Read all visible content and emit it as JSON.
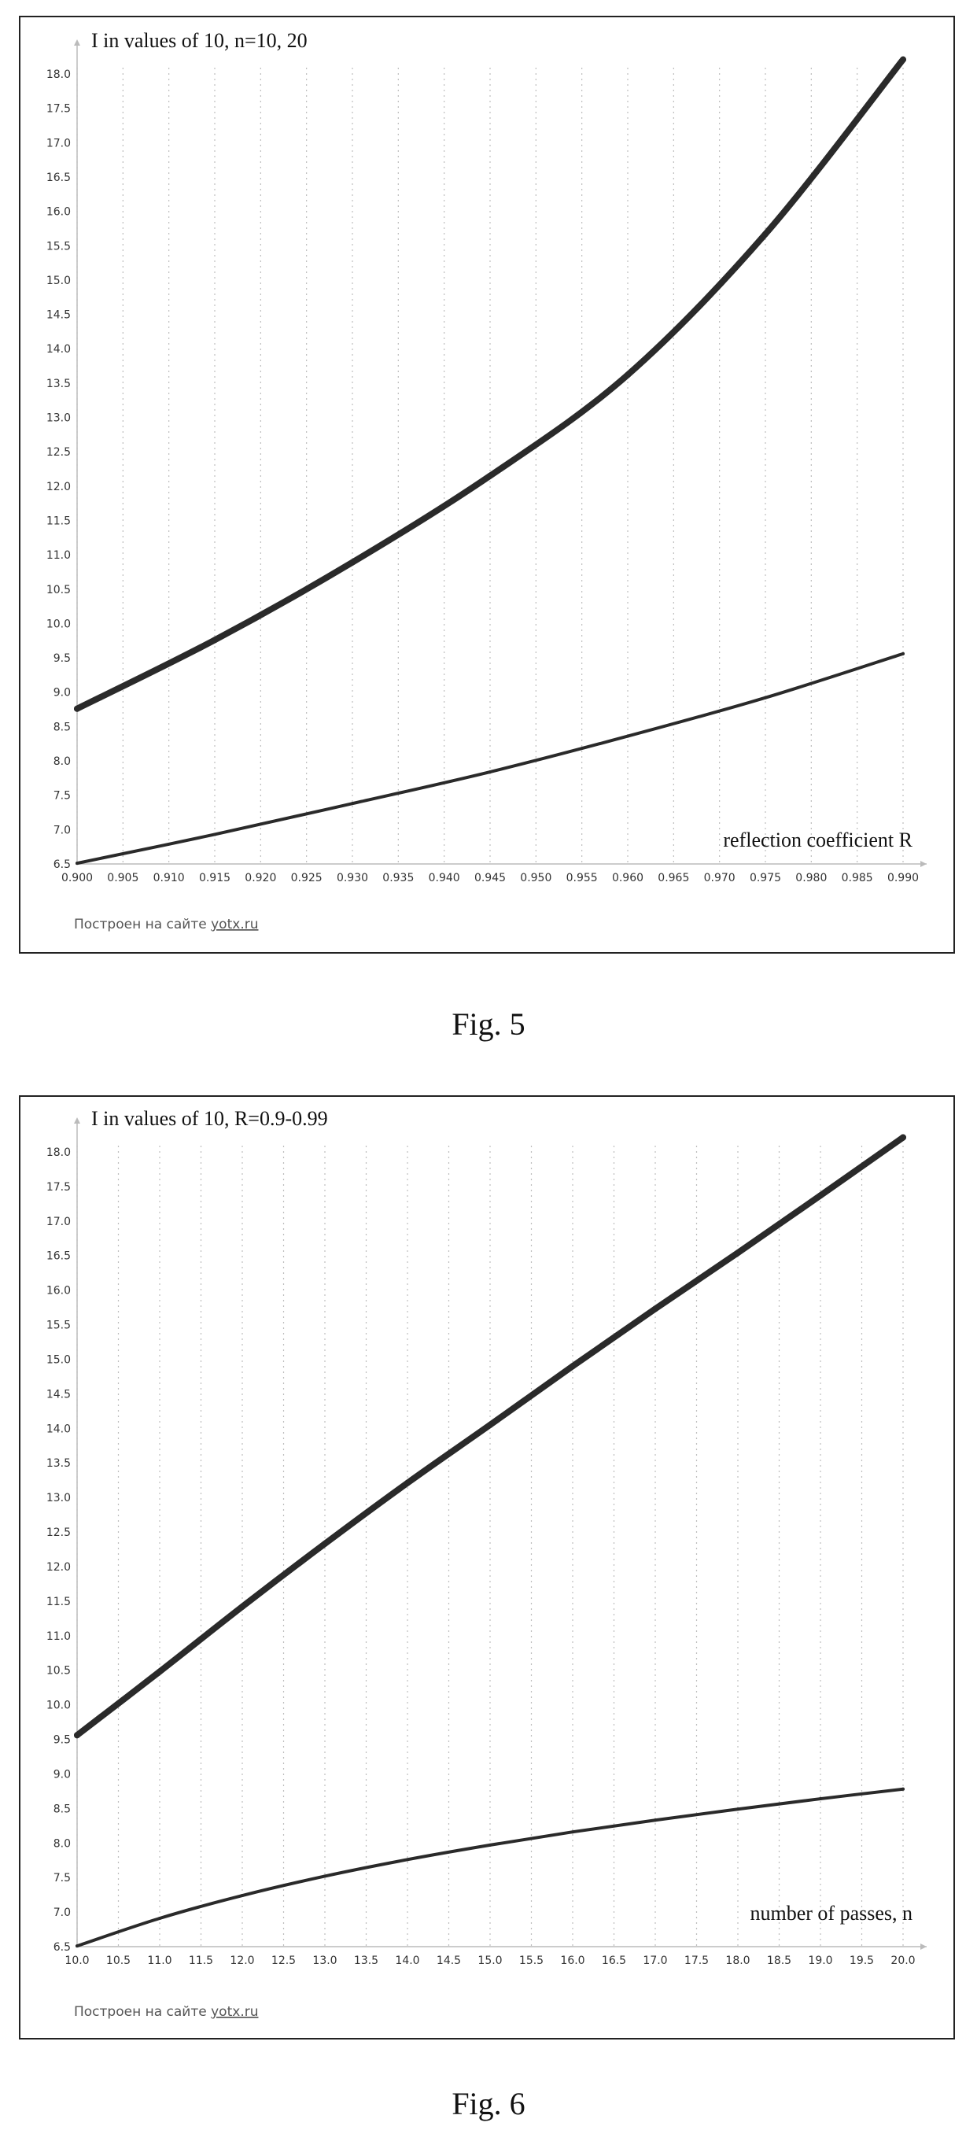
{
  "figures": [
    {
      "caption": "Fig. 5",
      "credit_prefix": "Построен на сайте",
      "credit_link": "yotx.ru"
    },
    {
      "caption": "Fig. 6",
      "credit_prefix": "Построен на сайте",
      "credit_link": "yotx.ru"
    }
  ],
  "chart_data": [
    {
      "type": "line",
      "title": "I in values of 10, n=10, 20",
      "xlabel": "reflection coefficient R",
      "ylabel": "",
      "xlim": [
        0.9,
        0.99
      ],
      "ylim": [
        6.5,
        18.0
      ],
      "xticks": [
        "0.900",
        "0.905",
        "0.910",
        "0.915",
        "0.920",
        "0.925",
        "0.930",
        "0.935",
        "0.940",
        "0.945",
        "0.950",
        "0.955",
        "0.960",
        "0.965",
        "0.970",
        "0.975",
        "0.980",
        "0.985",
        "0.990"
      ],
      "yticks": [
        "6.5",
        "7.0",
        "7.5",
        "8.0",
        "8.5",
        "9.0",
        "9.5",
        "10.0",
        "10.5",
        "11.0",
        "11.5",
        "12.0",
        "12.5",
        "13.0",
        "13.5",
        "14.0",
        "14.5",
        "15.0",
        "15.5",
        "16.0",
        "16.5",
        "17.0",
        "17.5",
        "18.0"
      ],
      "grid": true,
      "x": [
        0.9,
        0.915,
        0.93,
        0.945,
        0.96,
        0.975,
        0.99
      ],
      "series": [
        {
          "values": [
            8.76,
            9.76,
            10.89,
            12.15,
            13.62,
            15.67,
            18.21
          ],
          "stroke": 8
        },
        {
          "values": [
            6.51,
            6.93,
            7.38,
            7.84,
            8.36,
            8.92,
            9.56
          ],
          "stroke": 4
        }
      ]
    },
    {
      "type": "line",
      "title": "I in values of 10, R=0.9-0.99",
      "xlabel": "number of passes, n",
      "ylabel": "",
      "xlim": [
        10.0,
        20.0
      ],
      "ylim": [
        6.5,
        18.0
      ],
      "xticks": [
        "10.0",
        "10.5",
        "11.0",
        "11.5",
        "12.0",
        "12.5",
        "13.0",
        "13.5",
        "14.0",
        "14.5",
        "15.0",
        "15.5",
        "16.0",
        "16.5",
        "17.0",
        "17.5",
        "18.0",
        "18.5",
        "19.0",
        "19.5",
        "20.0"
      ],
      "yticks": [
        "6.5",
        "7.0",
        "7.5",
        "8.0",
        "8.5",
        "9.0",
        "9.5",
        "10.0",
        "10.5",
        "11.0",
        "11.5",
        "12.0",
        "12.5",
        "13.0",
        "13.5",
        "14.0",
        "14.5",
        "15.0",
        "15.5",
        "16.0",
        "16.5",
        "17.0",
        "17.5",
        "18.0"
      ],
      "grid": true,
      "x": [
        10,
        11,
        12,
        13,
        14,
        15,
        16,
        17,
        18,
        19,
        20
      ],
      "series": [
        {
          "values": [
            9.56,
            10.48,
            11.42,
            12.33,
            13.21,
            14.05,
            14.9,
            15.73,
            16.54,
            17.37,
            18.21
          ],
          "stroke": 8
        },
        {
          "values": [
            6.51,
            6.91,
            7.24,
            7.52,
            7.76,
            7.97,
            8.16,
            8.33,
            8.49,
            8.64,
            8.78
          ],
          "stroke": 4
        }
      ]
    }
  ]
}
